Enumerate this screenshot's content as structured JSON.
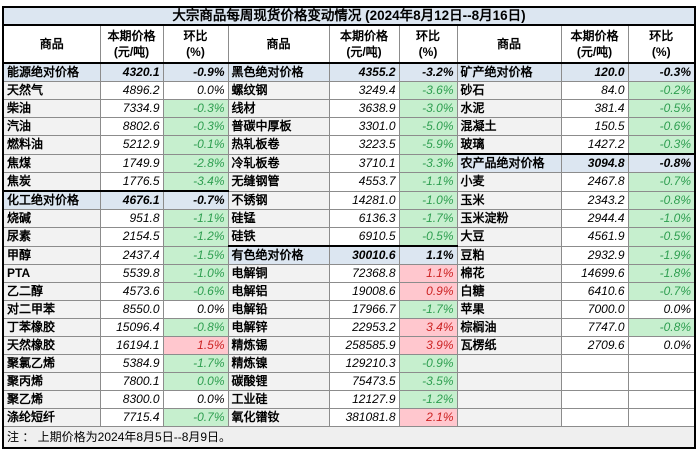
{
  "title": "大宗商品每周现货价格变动情况 (2024年8月12日--8月16日)",
  "note": "注 ： 上期价格为2024年8月5日--8月9日。",
  "columns": {
    "commodity": "商品",
    "price_line1": "本期价格",
    "price_line2": "(元/吨)",
    "pct_line1": "环比",
    "pct_line2": "(%)"
  },
  "colors": {
    "section_bg": "#dce6f1",
    "name_bg": "#f2f2f2",
    "decrease_bg": "#c6efce",
    "decrease_text": "#2e9e50",
    "increase_bg": "#ffc7ce",
    "increase_text": "#cc2222",
    "grid_line": "#8c8c8c"
  },
  "groups": [
    {
      "rows": [
        {
          "name": "能源绝对价格",
          "price": "4320.1",
          "pct": "-0.9%",
          "style": "section"
        },
        {
          "name": "天然气",
          "price": "4896.2",
          "pct": "0.0%",
          "style": "plain"
        },
        {
          "name": "柴油",
          "price": "7334.9",
          "pct": "-0.3%",
          "style": "down"
        },
        {
          "name": "汽油",
          "price": "8802.6",
          "pct": "-0.3%",
          "style": "down"
        },
        {
          "name": "燃料油",
          "price": "5212.9",
          "pct": "-0.1%",
          "style": "down"
        },
        {
          "name": "焦煤",
          "price": "1749.9",
          "pct": "-2.8%",
          "style": "down"
        },
        {
          "name": "焦炭",
          "price": "1776.5",
          "pct": "-3.4%",
          "style": "down"
        },
        {
          "name": "化工绝对价格",
          "price": "4676.1",
          "pct": "-0.7%",
          "style": "section"
        },
        {
          "name": "烧碱",
          "price": "951.8",
          "pct": "-1.1%",
          "style": "down"
        },
        {
          "name": "尿素",
          "price": "2154.5",
          "pct": "-1.2%",
          "style": "down"
        },
        {
          "name": "甲醇",
          "price": "2437.4",
          "pct": "-1.5%",
          "style": "down"
        },
        {
          "name": "PTA",
          "price": "5539.8",
          "pct": "-1.0%",
          "style": "down"
        },
        {
          "name": "乙二醇",
          "price": "4573.6",
          "pct": "-0.6%",
          "style": "down"
        },
        {
          "name": "对二甲苯",
          "price": "8550.0",
          "pct": "0.0%",
          "style": "plain"
        },
        {
          "name": "丁苯橡胶",
          "price": "15096.4",
          "pct": "-0.8%",
          "style": "down"
        },
        {
          "name": "天然橡胶",
          "price": "16194.1",
          "pct": "1.5%",
          "style": "up"
        },
        {
          "name": "聚氯乙烯",
          "price": "5384.9",
          "pct": "-1.7%",
          "style": "down"
        },
        {
          "name": "聚丙烯",
          "price": "7800.1",
          "pct": "0.0%",
          "style": "down"
        },
        {
          "name": "聚乙烯",
          "price": "8300.0",
          "pct": "0.0%",
          "style": "plain"
        },
        {
          "name": "涤纶短纤",
          "price": "7715.4",
          "pct": "-0.7%",
          "style": "down"
        }
      ]
    },
    {
      "rows": [
        {
          "name": "黑色绝对价格",
          "price": "4355.2",
          "pct": "-3.2%",
          "style": "section"
        },
        {
          "name": "螺纹钢",
          "price": "3249.4",
          "pct": "-3.6%",
          "style": "down"
        },
        {
          "name": "线材",
          "price": "3638.9",
          "pct": "-3.0%",
          "style": "down"
        },
        {
          "name": "普碳中厚板",
          "price": "3301.0",
          "pct": "-5.0%",
          "style": "down"
        },
        {
          "name": "热轧板卷",
          "price": "3223.5",
          "pct": "-5.9%",
          "style": "down"
        },
        {
          "name": "冷轧板卷",
          "price": "3710.1",
          "pct": "-3.3%",
          "style": "down"
        },
        {
          "name": "无缝钢管",
          "price": "4553.7",
          "pct": "-1.1%",
          "style": "down"
        },
        {
          "name": "不锈钢",
          "price": "14281.0",
          "pct": "-1.0%",
          "style": "down"
        },
        {
          "name": "硅锰",
          "price": "6136.3",
          "pct": "-1.7%",
          "style": "down"
        },
        {
          "name": "硅铁",
          "price": "6910.5",
          "pct": "-0.5%",
          "style": "down"
        },
        {
          "name": "有色绝对价格",
          "price": "30010.6",
          "pct": "1.1%",
          "style": "section"
        },
        {
          "name": "电解铜",
          "price": "72368.8",
          "pct": "1.1%",
          "style": "up"
        },
        {
          "name": "电解铝",
          "price": "19008.6",
          "pct": "0.9%",
          "style": "up"
        },
        {
          "name": "电解铅",
          "price": "17966.7",
          "pct": "-1.7%",
          "style": "down"
        },
        {
          "name": "电解锌",
          "price": "22953.2",
          "pct": "3.4%",
          "style": "up"
        },
        {
          "name": "精炼锡",
          "price": "258585.9",
          "pct": "3.9%",
          "style": "up"
        },
        {
          "name": "精炼镍",
          "price": "129210.3",
          "pct": "-0.9%",
          "style": "down"
        },
        {
          "name": "碳酸锂",
          "price": "75473.5",
          "pct": "-3.5%",
          "style": "down"
        },
        {
          "name": "工业硅",
          "price": "12127.9",
          "pct": "-1.2%",
          "style": "down"
        },
        {
          "name": "氧化镨钕",
          "price": "381081.8",
          "pct": "2.1%",
          "style": "up"
        }
      ]
    },
    {
      "rows": [
        {
          "name": "矿产绝对价格",
          "price": "120.0",
          "pct": "-0.3%",
          "style": "section"
        },
        {
          "name": "砂石",
          "price": "84.0",
          "pct": "-0.2%",
          "style": "down"
        },
        {
          "name": "水泥",
          "price": "381.4",
          "pct": "-0.5%",
          "style": "down"
        },
        {
          "name": "混凝土",
          "price": "150.5",
          "pct": "-0.6%",
          "style": "down"
        },
        {
          "name": "玻璃",
          "price": "1427.2",
          "pct": "-0.3%",
          "style": "down"
        },
        {
          "name": "农产品绝对价格",
          "price": "3094.8",
          "pct": "-0.8%",
          "style": "section"
        },
        {
          "name": "小麦",
          "price": "2467.8",
          "pct": "-0.7%",
          "style": "down"
        },
        {
          "name": "玉米",
          "price": "2343.2",
          "pct": "-0.8%",
          "style": "down"
        },
        {
          "name": "玉米淀粉",
          "price": "2944.4",
          "pct": "-1.0%",
          "style": "down"
        },
        {
          "name": "大豆",
          "price": "4561.9",
          "pct": "-0.5%",
          "style": "down"
        },
        {
          "name": "豆粕",
          "price": "2932.9",
          "pct": "-1.9%",
          "style": "down"
        },
        {
          "name": "棉花",
          "price": "14699.6",
          "pct": "-1.8%",
          "style": "down"
        },
        {
          "name": "白糖",
          "price": "6410.6",
          "pct": "-0.7%",
          "style": "down"
        },
        {
          "name": "苹果",
          "price": "7000.0",
          "pct": "0.0%",
          "style": "plain"
        },
        {
          "name": "棕榈油",
          "price": "7747.0",
          "pct": "-0.8%",
          "style": "down"
        },
        {
          "name": "瓦楞纸",
          "price": "2709.6",
          "pct": "0.0%",
          "style": "plain"
        },
        {
          "name": "",
          "price": "",
          "pct": "",
          "style": "empty"
        },
        {
          "name": "",
          "price": "",
          "pct": "",
          "style": "empty"
        },
        {
          "name": "",
          "price": "",
          "pct": "",
          "style": "empty"
        },
        {
          "name": "",
          "price": "",
          "pct": "",
          "style": "empty"
        }
      ]
    }
  ]
}
